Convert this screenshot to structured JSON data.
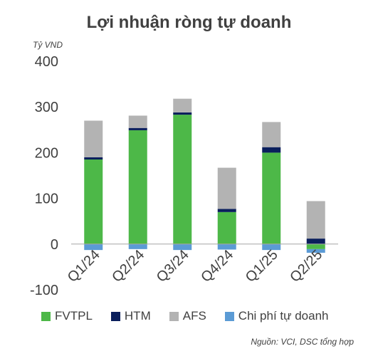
{
  "title": "Lợi nhuận ròng tự doanh",
  "unit": "Tỷ VND",
  "source": "Nguồn: VCI, DSC tổng hợp",
  "chart_data": {
    "type": "bar",
    "stacked": true,
    "categories": [
      "Q1/24",
      "Q2/24",
      "Q3/24",
      "Q4/24",
      "Q1/25",
      "Q2/25"
    ],
    "series": [
      {
        "name": "FVTPL",
        "color": "#4db848",
        "values": [
          185,
          249,
          283,
          70,
          200,
          -11
        ]
      },
      {
        "name": "HTM",
        "color": "#0a1f5c",
        "values": [
          5,
          5,
          5,
          7,
          12,
          12
        ]
      },
      {
        "name": "AFS",
        "color": "#b3b3b3",
        "values": [
          80,
          27,
          30,
          90,
          55,
          82
        ]
      },
      {
        "name": "Chi phí tự doanh",
        "color": "#5b9bd5",
        "values": [
          -13,
          -11,
          -13,
          -12,
          -13,
          -8
        ]
      }
    ],
    "yticks": [
      "400",
      "300",
      "200",
      "100",
      "0",
      "-100"
    ],
    "ylim": [
      -100,
      400
    ]
  }
}
